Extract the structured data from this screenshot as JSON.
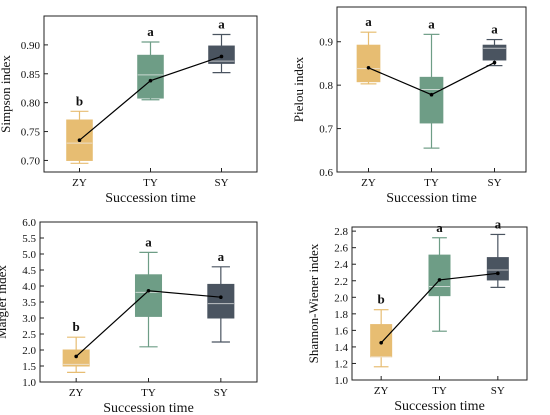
{
  "colors": {
    "ZY": "#E7BD72",
    "TY": "#6E9D86",
    "SY": "#4A5460",
    "mean_line": "#000000",
    "median": "#f0f0f0"
  },
  "chart_data": [
    {
      "type": "box",
      "ylabel": "Simpson index",
      "xlabel": "Succession time",
      "categories": [
        "ZY",
        "TY",
        "SY"
      ],
      "ylim": [
        0.68,
        0.95
      ],
      "yticks": [
        0.7,
        0.75,
        0.8,
        0.85,
        0.9
      ],
      "ytick_labels": [
        "0.70",
        "0.75",
        "0.80",
        "0.85",
        "0.90"
      ],
      "boxes": [
        {
          "min": 0.695,
          "q1": 0.7,
          "median": 0.73,
          "q3": 0.77,
          "max": 0.785,
          "mean": 0.735,
          "sig": "b"
        },
        {
          "min": 0.805,
          "q1": 0.808,
          "median": 0.848,
          "q3": 0.882,
          "max": 0.905,
          "mean": 0.838,
          "sig": "a"
        },
        {
          "min": 0.852,
          "q1": 0.868,
          "median": 0.872,
          "q3": 0.898,
          "max": 0.918,
          "mean": 0.88,
          "sig": "a"
        }
      ]
    },
    {
      "type": "box",
      "ylabel": "Pielou index",
      "xlabel": "Succession time",
      "categories": [
        "ZY",
        "TY",
        "SY"
      ],
      "ylim": [
        0.6,
        0.98
      ],
      "yticks": [
        0.6,
        0.7,
        0.8,
        0.9
      ],
      "ytick_labels": [
        "0.6",
        "0.7",
        "0.8",
        "0.9"
      ],
      "boxes": [
        {
          "min": 0.803,
          "q1": 0.808,
          "median": 0.838,
          "q3": 0.892,
          "max": 0.922,
          "mean": 0.84,
          "sig": "a"
        },
        {
          "min": 0.655,
          "q1": 0.713,
          "median": 0.79,
          "q3": 0.818,
          "max": 0.917,
          "mean": 0.778,
          "sig": "a"
        },
        {
          "min": 0.845,
          "q1": 0.858,
          "median": 0.885,
          "q3": 0.892,
          "max": 0.905,
          "mean": 0.852,
          "sig": "a"
        }
      ]
    },
    {
      "type": "box",
      "ylabel": "Margléf index",
      "xlabel": "Succession time",
      "categories": [
        "ZY",
        "TY",
        "SY"
      ],
      "ylim": [
        1.0,
        6.0
      ],
      "yticks": [
        1.0,
        1.5,
        2.0,
        2.5,
        3.0,
        3.5,
        4.0,
        4.5,
        5.0,
        5.5,
        6.0
      ],
      "ytick_labels": [
        "1.0",
        "1.5",
        "2.0",
        "2.5",
        "3.0",
        "3.5",
        "4.0",
        "4.5",
        "5.0",
        "5.5",
        "6.0"
      ],
      "boxes": [
        {
          "min": 1.3,
          "q1": 1.5,
          "median": 1.55,
          "q3": 2.0,
          "max": 2.4,
          "mean": 1.8,
          "sig": "b"
        },
        {
          "min": 2.1,
          "q1": 3.05,
          "median": 3.8,
          "q3": 4.35,
          "max": 5.05,
          "mean": 3.85,
          "sig": "a"
        },
        {
          "min": 2.25,
          "q1": 3.0,
          "median": 3.45,
          "q3": 4.05,
          "max": 4.6,
          "mean": 3.65,
          "sig": "a"
        }
      ]
    },
    {
      "type": "box",
      "ylabel": "Shannon-Wiener index",
      "xlabel": "Succession time",
      "categories": [
        "ZY",
        "TY",
        "SY"
      ],
      "ylim": [
        1.0,
        2.85
      ],
      "yticks": [
        1.0,
        1.2,
        1.4,
        1.6,
        1.8,
        2.0,
        2.2,
        2.4,
        2.6,
        2.8
      ],
      "ytick_labels": [
        "1.0",
        "1.2",
        "1.4",
        "1.6",
        "1.8",
        "2.0",
        "2.2",
        "2.4",
        "2.6",
        "2.8"
      ],
      "boxes": [
        {
          "min": 1.16,
          "q1": 1.28,
          "median": 1.28,
          "q3": 1.67,
          "max": 1.85,
          "mean": 1.45,
          "sig": "b"
        },
        {
          "min": 1.59,
          "q1": 2.02,
          "median": 2.13,
          "q3": 2.51,
          "max": 2.72,
          "mean": 2.21,
          "sig": "a"
        },
        {
          "min": 2.12,
          "q1": 2.21,
          "median": 2.33,
          "q3": 2.48,
          "max": 2.76,
          "mean": 2.29,
          "sig": "a"
        }
      ]
    }
  ]
}
